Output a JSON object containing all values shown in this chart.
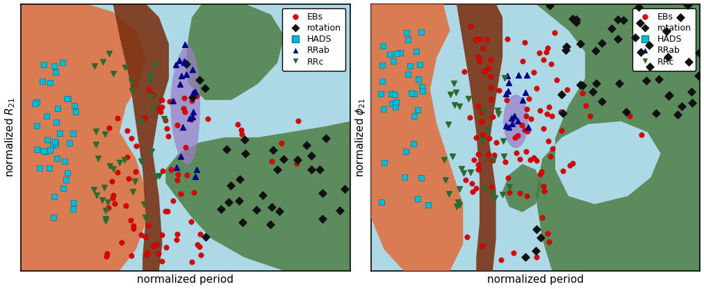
{
  "bg_color": "#add8e6",
  "orange_color": "#e07040",
  "brown_color": "#7a3010",
  "green_color": "#4a7c3f",
  "purple_color": "#9b7ec8",
  "EBs_color": "#dd0000",
  "rotation_color": "#111111",
  "HADS_color": "#00bcd4",
  "RRab_color": "#00008b",
  "RRc_color": "#2d6a2d",
  "ylabel_left": "normalized $R_{21}$",
  "ylabel_right": "normalized $\\phi_{21}$",
  "xlabel": "normalized period"
}
